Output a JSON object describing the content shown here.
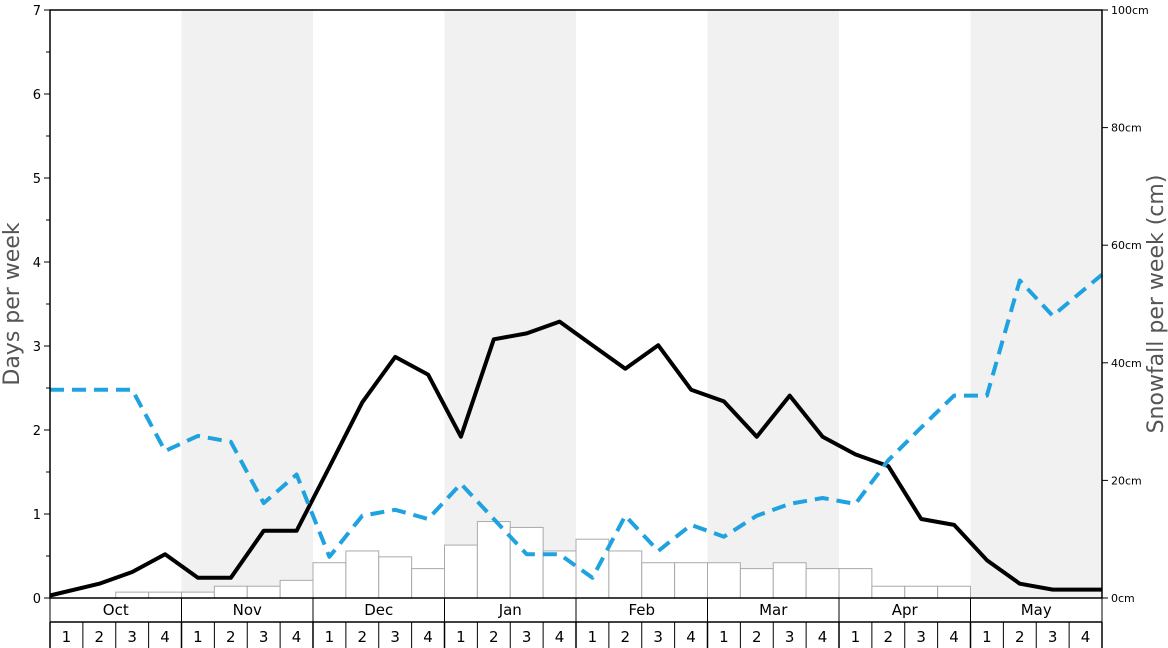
{
  "chart_data": {
    "type": "bar+line",
    "ylabel_left": "Days per week",
    "ylabel_right": "Snowfall per week (cm)",
    "ylim_left": [
      0,
      7
    ],
    "ylim_right": [
      0,
      100
    ],
    "left_ticks": [
      "0",
      "1",
      "2",
      "3",
      "4",
      "5",
      "6",
      "7"
    ],
    "right_ticks": [
      "0cm",
      "20cm",
      "40cm",
      "60cm",
      "80cm",
      "100cm"
    ],
    "months": [
      "Oct",
      "Nov",
      "Dec",
      "Jan",
      "Feb",
      "Mar",
      "Apr",
      "May"
    ],
    "week_labels": [
      "1",
      "2",
      "3",
      "4",
      "1",
      "2",
      "3",
      "4",
      "1",
      "2",
      "3",
      "4",
      "1",
      "2",
      "3",
      "4",
      "1",
      "2",
      "3",
      "4",
      "1",
      "2",
      "3",
      "4",
      "1",
      "2",
      "3",
      "4",
      "1",
      "2",
      "3",
      "4"
    ],
    "shaded_months": [
      "Nov",
      "Jan",
      "Mar",
      "May"
    ],
    "series": [
      {
        "kind": "bar",
        "axis": "right",
        "color": "#ffffff",
        "edge_color": "#aaaaaa",
        "values": [
          0,
          0,
          1,
          1,
          1,
          2,
          2,
          3,
          6,
          8,
          7,
          5,
          9,
          13,
          12,
          8,
          10,
          8,
          6,
          6,
          6,
          5,
          6,
          5,
          5,
          2,
          2,
          2,
          0,
          0,
          0,
          0
        ]
      },
      {
        "kind": "line",
        "axis": "left",
        "color": "#000000",
        "style": "solid",
        "values": [
          0.03,
          0.17,
          0.31,
          0.52,
          0.24,
          0.24,
          0.8,
          0.8,
          1.56,
          2.33,
          2.87,
          2.66,
          1.92,
          3.08,
          3.15,
          3.29,
          3.01,
          2.73,
          3.01,
          2.48,
          2.34,
          1.92,
          2.41,
          1.92,
          1.71,
          1.57,
          0.94,
          0.87,
          0.45,
          0.17,
          0.1,
          0.1
        ]
      },
      {
        "kind": "line",
        "axis": "left",
        "color": "#1fa2e0",
        "style": "dashed",
        "values": [
          2.48,
          2.48,
          2.48,
          1.75,
          1.93,
          1.86,
          1.13,
          1.47,
          0.49,
          0.98,
          1.05,
          0.94,
          1.36,
          0.94,
          0.52,
          0.52,
          0.24,
          0.98,
          0.56,
          0.87,
          0.73,
          0.98,
          1.12,
          1.19,
          1.12,
          1.64,
          2.03,
          2.41,
          2.41,
          3.78,
          3.36,
          3.85
        ]
      }
    ]
  }
}
